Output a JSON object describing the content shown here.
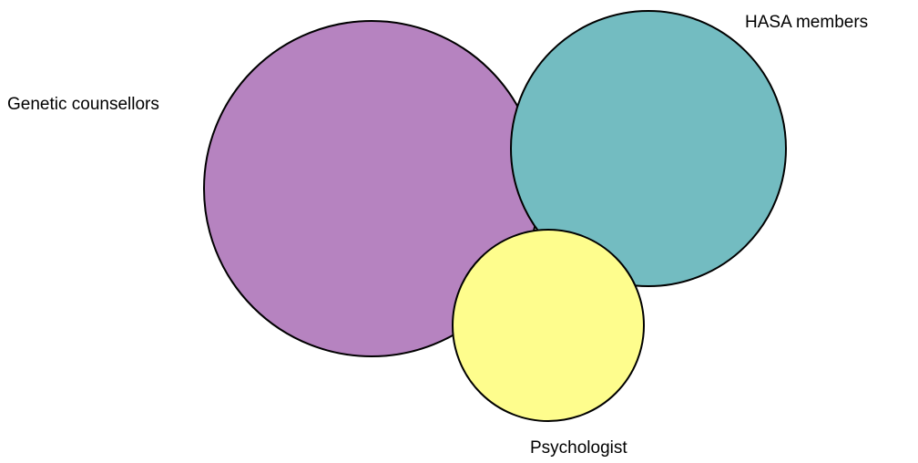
{
  "nodes": [
    {
      "label": "Genetic counsellors"
    },
    {
      "label": "HASA members"
    },
    {
      "label": "Psychologist"
    }
  ]
}
